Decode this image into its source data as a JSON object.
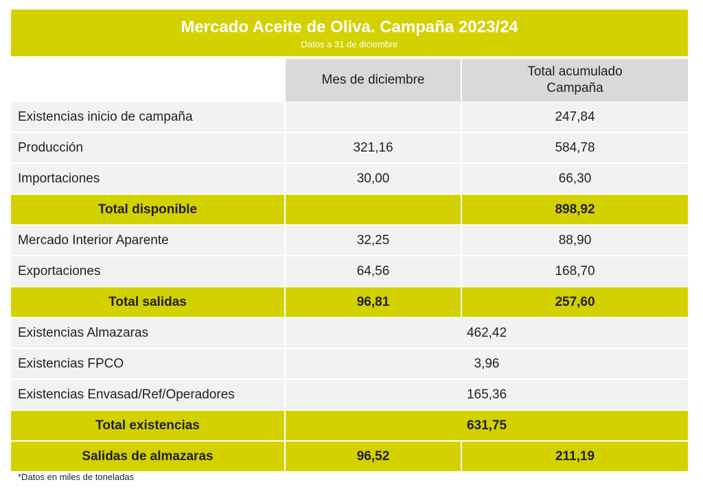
{
  "banner": {
    "title": "Mercado Aceite de Oliva. Campaña 2023/24",
    "subtitle": "Datos a 31 de diciembre"
  },
  "columns": {
    "mes": "Mes de diciembre",
    "total_line1": "Total acumulado",
    "total_line2": "Campaña"
  },
  "rows": {
    "existencias_inicio": {
      "label": "Existencias inicio de campaña",
      "mes": "",
      "total": "247,84"
    },
    "produccion": {
      "label": "Producción",
      "mes": "321,16",
      "total": "584,78"
    },
    "importaciones": {
      "label": "Importaciones",
      "mes": "30,00",
      "total": "66,30"
    },
    "total_disponible": {
      "label": "Total disponible",
      "mes": "",
      "total": "898,92"
    },
    "mercado_interior": {
      "label": "Mercado Interior Aparente",
      "mes": "32,25",
      "total": "88,90"
    },
    "exportaciones": {
      "label": "Exportaciones",
      "mes": "64,56",
      "total": "168,70"
    },
    "total_salidas": {
      "label": "Total salidas",
      "mes": "96,81",
      "total": "257,60"
    },
    "existencias_almazaras": {
      "label": "Existencias Almazaras",
      "value": "462,42"
    },
    "existencias_fpco": {
      "label": "Existencias FPCO",
      "value": "3,96"
    },
    "existencias_envasad": {
      "label": "Existencias Envasad/Ref/Operadores",
      "value": "165,36"
    },
    "total_existencias": {
      "label": "Total existencias",
      "value": "631,75"
    },
    "salidas_almazaras": {
      "label": "Salidas de almazaras",
      "mes": "96,52",
      "total": "211,19"
    }
  },
  "footnote": "*Datos en miles de toneladas",
  "colors": {
    "accent": "#d3d100",
    "row_bg": "#f2f2f2",
    "header_bg": "#d9d9d9"
  }
}
